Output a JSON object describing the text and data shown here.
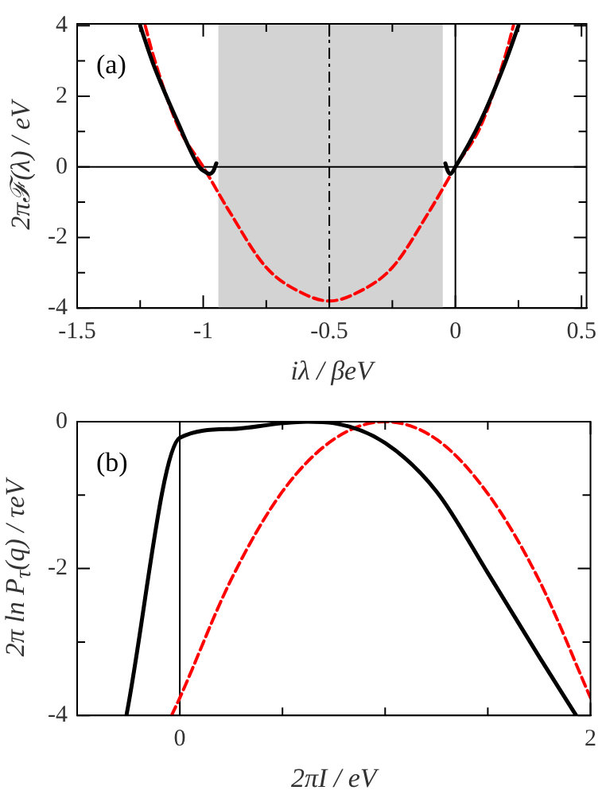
{
  "chart_data": [
    {
      "type": "line",
      "xlabel": "iλ / βeV",
      "ylabel": "2πℱ(λ) / eV",
      "annotations": [
        "(a)"
      ],
      "xlim": [
        -1.5,
        0.52
      ],
      "ylim": [
        -4,
        4.05
      ],
      "xticks": [
        -1.5,
        {
          "value": -1.25,
          "label": null
        },
        -1,
        {
          "value": -0.75,
          "label": null
        },
        -0.5,
        {
          "value": -0.25,
          "label": null
        },
        0,
        {
          "value": 0.25,
          "label": null
        },
        0.5
      ],
      "yticks": [
        -4,
        {
          "value": -3,
          "label": null
        },
        -2,
        {
          "value": -1,
          "label": null
        },
        0,
        {
          "value": 1,
          "label": null
        },
        2,
        {
          "value": 3,
          "label": null
        },
        4
      ],
      "grid": false,
      "legend": false,
      "marker": "none",
      "bands": [
        {
          "axis": "x",
          "from": -0.94,
          "to": -0.05,
          "color": "#d3d3d3"
        }
      ],
      "ref_lines": [
        {
          "axis": "y",
          "value": 0,
          "color": "#000000",
          "line_style": "solid"
        },
        {
          "axis": "x",
          "value": 0,
          "color": "#000000",
          "line_style": "solid"
        },
        {
          "axis": "x",
          "value": -0.5,
          "color": "#000000",
          "line_style": "dashdot"
        }
      ],
      "series": [
        {
          "color": "#000000",
          "line_style": "solid",
          "x": [
            -1.25,
            -1.2,
            -1.1,
            -1.016,
            -0.99,
            -0.975,
            -0.96,
            -0.948,
            -0.5,
            -0.04,
            -0.03,
            -0.02,
            0,
            0.1,
            0.2,
            0.25
          ],
          "values": [
            4,
            2.95,
            1.25,
            0,
            -0.15,
            -0.2,
            -0.12,
            0.1,
            null,
            0.1,
            -0.12,
            -0.2,
            0,
            1.3,
            3.0,
            4
          ]
        },
        {
          "color": "#ff0000",
          "line_style": "dashed",
          "x": [
            -1.23,
            -1.2,
            -1.1,
            -1.0,
            -0.9,
            -0.75,
            -0.6,
            -0.5,
            -0.4,
            -0.25,
            -0.1,
            0,
            0.1,
            0.2,
            0.23
          ],
          "values": [
            4,
            3.2,
            1.15,
            0,
            -1.22,
            -2.85,
            -3.6,
            -3.8,
            -3.6,
            -2.85,
            -1.22,
            0,
            1.15,
            3.2,
            4
          ]
        }
      ]
    },
    {
      "type": "line",
      "xlabel": "2πI / eV",
      "ylabel": "2π ln P$_{τ}$(q) / τeV",
      "annotations": [
        "(b)"
      ],
      "xlim": [
        -0.5,
        2
      ],
      "ylim": [
        -4,
        0
      ],
      "xticks": [
        0,
        {
          "value": 0.5,
          "label": null
        },
        {
          "value": 1,
          "label": null
        },
        {
          "value": 1.5,
          "label": null
        },
        2
      ],
      "yticks": [
        -4,
        {
          "value": -3,
          "label": null
        },
        -2,
        {
          "value": -1,
          "label": null
        },
        0
      ],
      "grid": false,
      "legend": false,
      "marker": "none",
      "ref_lines": [
        {
          "axis": "x",
          "value": 0,
          "color": "#000000",
          "line_style": "solid"
        }
      ],
      "series": [
        {
          "color": "#000000",
          "line_style": "solid",
          "x": [
            -0.26,
            0,
            0.25,
            0.5,
            0.62,
            0.75,
            1.0,
            1.25,
            1.5,
            1.75,
            1.93
          ],
          "values": [
            -4,
            -0.22,
            -0.1,
            -0.02,
            0,
            -0.02,
            -0.29,
            -0.95,
            -2.06,
            -3.2,
            -4
          ]
        },
        {
          "color": "#ff0000",
          "line_style": "dashed",
          "x": [
            -0.04,
            0,
            0.25,
            0.5,
            0.75,
            1.0,
            1.25,
            1.5,
            1.75,
            2.0
          ],
          "values": [
            -4,
            -3.76,
            -2.15,
            -0.95,
            -0.24,
            0,
            -0.24,
            -0.98,
            -2.16,
            -3.76
          ]
        }
      ]
    }
  ]
}
